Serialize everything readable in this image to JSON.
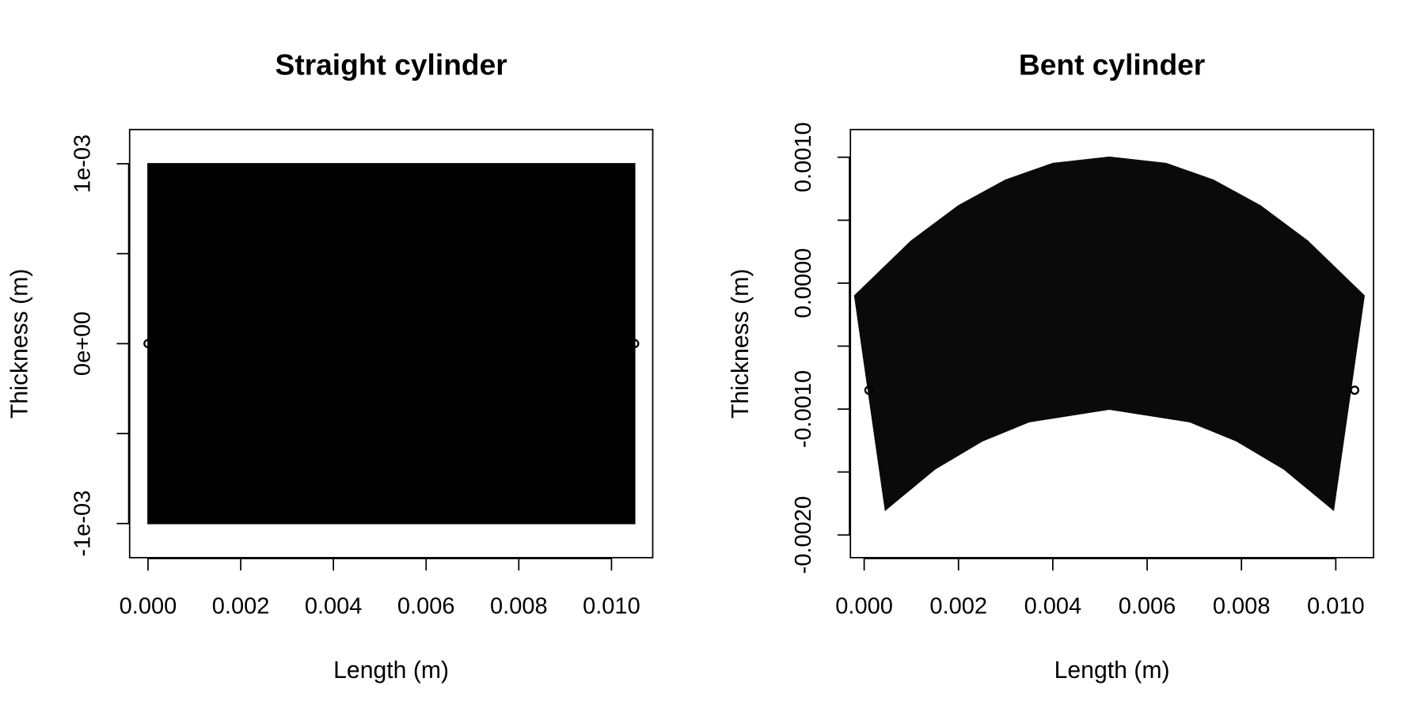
{
  "chart_data": [
    {
      "type": "band",
      "title": "Straight cylinder",
      "x_label": "Length (m)",
      "y_label": "Thickness (m)",
      "color": "#000000",
      "xlim": [
        -0.000397,
        0.01089
      ],
      "ylim": [
        -0.00119,
        0.00119
      ],
      "xticks": [
        {
          "value": 0,
          "label": "0.000"
        },
        {
          "value": 0.002,
          "label": "0.002"
        },
        {
          "value": 0.004,
          "label": "0.004"
        },
        {
          "value": 0.006,
          "label": "0.006"
        },
        {
          "value": 0.008,
          "label": "0.008"
        },
        {
          "value": 0.01,
          "label": "0.010"
        }
      ],
      "yticks": [
        {
          "value": -0.001,
          "label": "-1e-03"
        },
        {
          "value": 0,
          "label": "0e+00"
        },
        {
          "value": 0.001,
          "label": "1e-03"
        }
      ],
      "yminorticks": [
        -0.0005,
        0.0005
      ],
      "upper": {
        "x": [
          0,
          0.0105
        ],
        "y": [
          0.001,
          0.001
        ]
      },
      "lower": {
        "x": [
          0,
          0.0105
        ],
        "y": [
          -0.001,
          -0.001
        ]
      },
      "points": {
        "x": [
          0,
          0.0105
        ],
        "y": [
          0,
          0
        ]
      }
    },
    {
      "type": "band",
      "title": "Bent cylinder",
      "x_label": "Length (m)",
      "y_label": "Thickness (m)",
      "color": "#0a0a0a",
      "xlim": [
        -0.000292,
        0.0108
      ],
      "ylim": [
        -0.00218,
        0.00122
      ],
      "xticks": [
        {
          "value": 0,
          "label": "0.000"
        },
        {
          "value": 0.002,
          "label": "0.002"
        },
        {
          "value": 0.004,
          "label": "0.004"
        },
        {
          "value": 0.006,
          "label": "0.006"
        },
        {
          "value": 0.008,
          "label": "0.008"
        },
        {
          "value": 0.01,
          "label": "0.010"
        }
      ],
      "yticks": [
        {
          "value": -0.002,
          "label": "-0.0020"
        },
        {
          "value": -0.001,
          "label": "-0.0010"
        },
        {
          "value": 0,
          "label": "0.0000"
        },
        {
          "value": 0.001,
          "label": "0.0010"
        }
      ],
      "yminorticks": [
        -0.0015,
        -0.0005,
        0.0005
      ],
      "upper": {
        "x": [
          -0.0002,
          0.001,
          0.002,
          0.003,
          0.004,
          0.0052,
          0.0064,
          0.0074,
          0.0084,
          0.0094,
          0.0106
        ],
        "y": [
          -0.0001,
          0.000335,
          0.000614,
          0.000818,
          0.00095,
          0.001,
          0.00095,
          0.000818,
          0.000614,
          0.000335,
          -0.0001
        ]
      },
      "lower": {
        "x": [
          0.00045,
          0.0015,
          0.0025,
          0.0035,
          0.0052,
          0.0069,
          0.0079,
          0.0089,
          0.00995
        ],
        "y": [
          -0.0018,
          -0.001475,
          -0.001253,
          -0.0011,
          -0.001,
          -0.0011,
          -0.001253,
          -0.001475,
          -0.0018
        ]
      },
      "points": {
        "x": [
          0.0001,
          0.0104
        ],
        "y": [
          -0.00085,
          -0.00085
        ]
      }
    }
  ]
}
